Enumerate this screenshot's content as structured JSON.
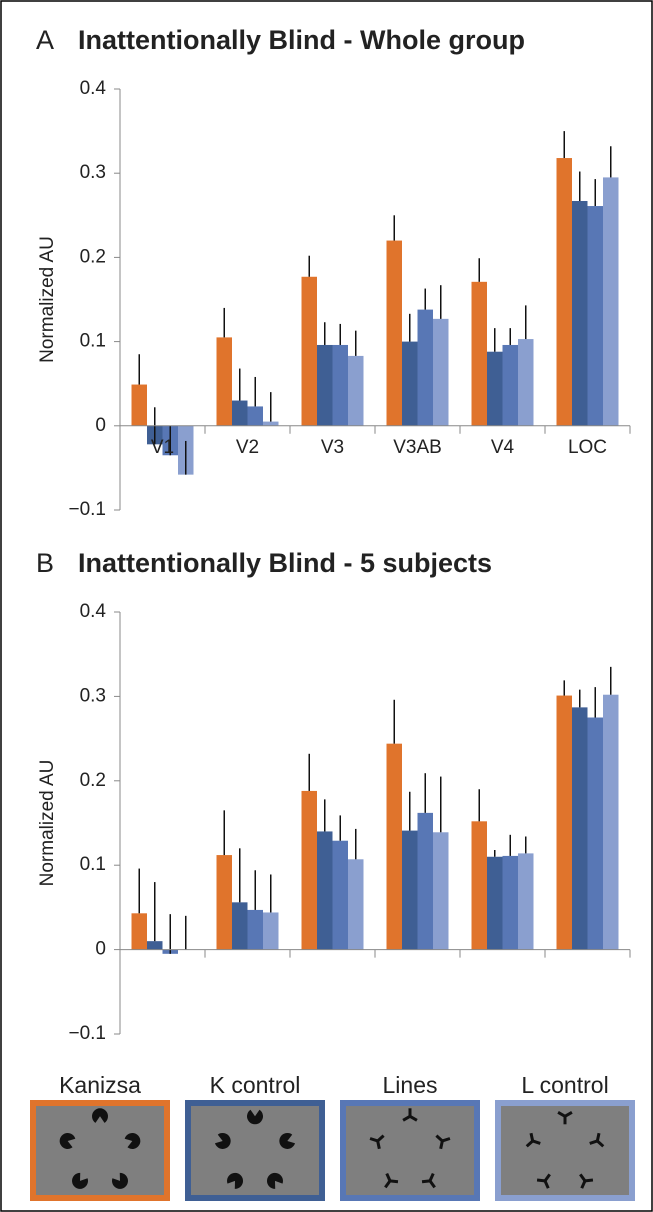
{
  "chart_data": [
    {
      "type": "bar",
      "panel": "A",
      "title": "Inattentionally Blind - Whole group",
      "ylabel": "Normalized AU",
      "categories": [
        "V1",
        "V2",
        "V3",
        "V3AB",
        "V4",
        "LOC"
      ],
      "series": [
        {
          "name": "Kanizsa",
          "color": "#e0742c",
          "values": [
            0.049,
            0.105,
            0.177,
            0.22,
            0.171,
            0.318
          ],
          "errors": [
            0.036,
            0.035,
            0.025,
            0.03,
            0.028,
            0.032
          ]
        },
        {
          "name": "K control",
          "color": "#3f5f94",
          "values": [
            -0.022,
            0.03,
            0.096,
            0.1,
            0.088,
            0.267
          ],
          "errors": [
            0.044,
            0.038,
            0.027,
            0.033,
            0.028,
            0.035
          ]
        },
        {
          "name": "Lines",
          "color": "#5877b5",
          "values": [
            -0.035,
            0.023,
            0.096,
            0.138,
            0.096,
            0.261
          ],
          "errors": [
            0.035,
            0.035,
            0.025,
            0.025,
            0.02,
            0.032
          ]
        },
        {
          "name": "L control",
          "color": "#8a9fcf",
          "values": [
            -0.058,
            0.005,
            0.083,
            0.127,
            0.103,
            0.295
          ],
          "errors": [
            0.04,
            0.035,
            0.03,
            0.04,
            0.04,
            0.037
          ]
        }
      ],
      "ylim": [
        -0.1,
        0.4
      ],
      "yticks": [
        {
          "value": -0.1,
          "label": "−0.1"
        },
        0,
        0.1,
        0.2,
        0.3,
        0.4
      ]
    },
    {
      "type": "bar",
      "panel": "B",
      "title": "Inattentionally Blind - 5 subjects",
      "ylabel": "Normalized AU",
      "categories": [
        null,
        null,
        null,
        null,
        null,
        null
      ],
      "series": [
        {
          "name": "Kanizsa",
          "color": "#e0742c",
          "values": [
            0.043,
            0.112,
            0.188,
            0.244,
            0.152,
            0.301
          ],
          "errors": [
            0.053,
            0.053,
            0.044,
            0.052,
            0.038,
            0.018
          ]
        },
        {
          "name": "K control",
          "color": "#3f5f94",
          "values": [
            0.01,
            0.056,
            0.14,
            0.141,
            0.11,
            0.287
          ],
          "errors": [
            0.07,
            0.064,
            0.038,
            0.046,
            0.008,
            0.021
          ]
        },
        {
          "name": "Lines",
          "color": "#5877b5",
          "values": [
            -0.005,
            0.047,
            0.129,
            0.162,
            0.111,
            0.275
          ],
          "errors": [
            0.047,
            0.047,
            0.03,
            0.047,
            0.025,
            0.036
          ]
        },
        {
          "name": "L control",
          "color": "#8a9fcf",
          "values": [
            0,
            0.044,
            0.107,
            0.139,
            0.114,
            0.302
          ],
          "errors": [
            0.04,
            0.045,
            0.036,
            0.066,
            0.02,
            0.033
          ]
        }
      ],
      "ylim": [
        -0.1,
        0.4
      ],
      "yticks": [
        {
          "value": -0.1,
          "label": "−0.1"
        },
        0,
        0.1,
        0.2,
        0.3,
        0.4
      ]
    }
  ]
}
